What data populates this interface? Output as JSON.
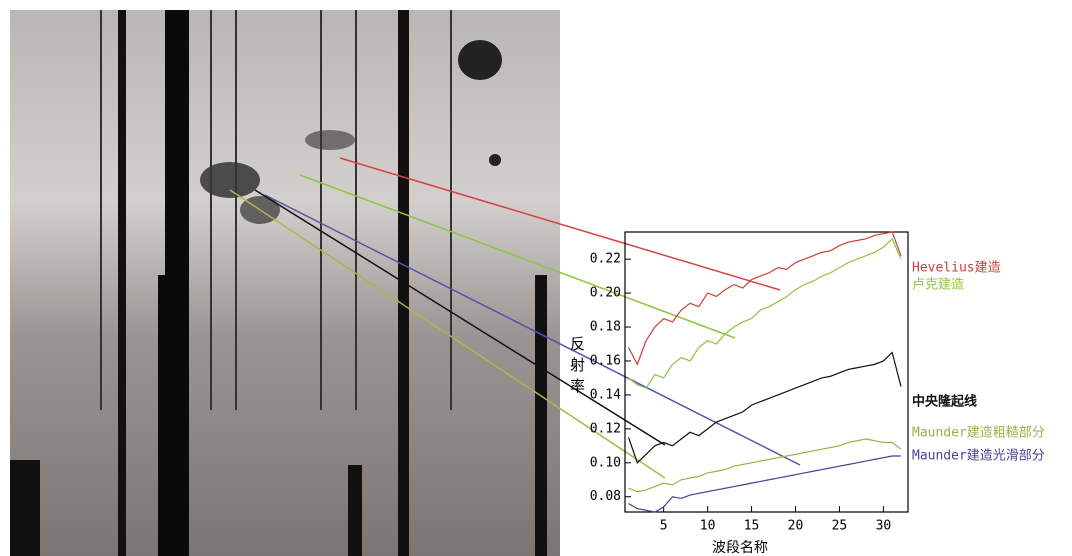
{
  "chart_data": {
    "type": "line",
    "x_label": "波段名称",
    "y_label": "反射率",
    "x": [
      1,
      2,
      3,
      4,
      5,
      6,
      7,
      8,
      9,
      10,
      11,
      12,
      13,
      14,
      15,
      16,
      17,
      18,
      19,
      20,
      21,
      22,
      23,
      24,
      25,
      26,
      27,
      28,
      29,
      30,
      31,
      32
    ],
    "xlim": [
      0.6,
      32.8
    ],
    "xticks": [
      5,
      10,
      15,
      20,
      25,
      30
    ],
    "ylim": [
      0.071,
      0.236
    ],
    "yticks": [
      {
        "value": 0.08,
        "label": "0.08"
      },
      {
        "value": 0.1,
        "label": "0.10"
      },
      {
        "value": 0.12,
        "label": "0.12"
      },
      {
        "value": 0.14,
        "label": "0.14"
      },
      {
        "value": 0.16,
        "label": "0.16"
      },
      {
        "value": 0.18,
        "label": "0.18"
      },
      {
        "value": 0.2,
        "label": "0.20"
      },
      {
        "value": 0.22,
        "label": "0.22"
      }
    ],
    "series": [
      {
        "name": "Hevelius建造",
        "color": "#c8403a",
        "values": [
          0.168,
          0.158,
          0.172,
          0.18,
          0.185,
          0.183,
          0.19,
          0.194,
          0.192,
          0.2,
          0.198,
          0.202,
          0.205,
          0.203,
          0.208,
          0.21,
          0.212,
          0.215,
          0.214,
          0.218,
          0.22,
          0.222,
          0.224,
          0.225,
          0.228,
          0.23,
          0.231,
          0.232,
          0.234,
          0.235,
          0.236,
          0.222
        ]
      },
      {
        "name": "卢克建造",
        "color": "#8ec63f",
        "values": [
          0.15,
          0.146,
          0.144,
          0.152,
          0.15,
          0.158,
          0.162,
          0.16,
          0.168,
          0.172,
          0.17,
          0.176,
          0.18,
          0.183,
          0.185,
          0.19,
          0.192,
          0.195,
          0.198,
          0.202,
          0.205,
          0.207,
          0.21,
          0.212,
          0.215,
          0.218,
          0.22,
          0.222,
          0.224,
          0.227,
          0.232,
          0.22
        ]
      },
      {
        "name": "中央隆起线",
        "color": "#111111",
        "values": [
          0.115,
          0.1,
          0.105,
          0.11,
          0.112,
          0.11,
          0.114,
          0.118,
          0.116,
          0.12,
          0.124,
          0.126,
          0.128,
          0.13,
          0.134,
          0.136,
          0.138,
          0.14,
          0.142,
          0.144,
          0.146,
          0.148,
          0.15,
          0.151,
          0.153,
          0.155,
          0.156,
          0.157,
          0.158,
          0.16,
          0.165,
          0.145
        ]
      },
      {
        "name": "Maunder建造粗糙部分",
        "color": "#9bb04a",
        "values": [
          0.085,
          0.083,
          0.084,
          0.086,
          0.088,
          0.087,
          0.09,
          0.091,
          0.092,
          0.094,
          0.095,
          0.096,
          0.098,
          0.099,
          0.1,
          0.101,
          0.102,
          0.103,
          0.104,
          0.105,
          0.106,
          0.107,
          0.108,
          0.109,
          0.11,
          0.112,
          0.113,
          0.114,
          0.113,
          0.112,
          0.112,
          0.108
        ]
      },
      {
        "name": "Maunder建造光滑部分",
        "color": "#4a3f95",
        "values": [
          0.076,
          0.073,
          0.072,
          0.071,
          0.074,
          0.08,
          0.079,
          0.081,
          0.082,
          0.083,
          0.084,
          0.085,
          0.086,
          0.087,
          0.088,
          0.089,
          0.09,
          0.091,
          0.092,
          0.093,
          0.094,
          0.095,
          0.096,
          0.097,
          0.098,
          0.099,
          0.1,
          0.101,
          0.102,
          0.103,
          0.104,
          0.104
        ]
      }
    ]
  }
}
